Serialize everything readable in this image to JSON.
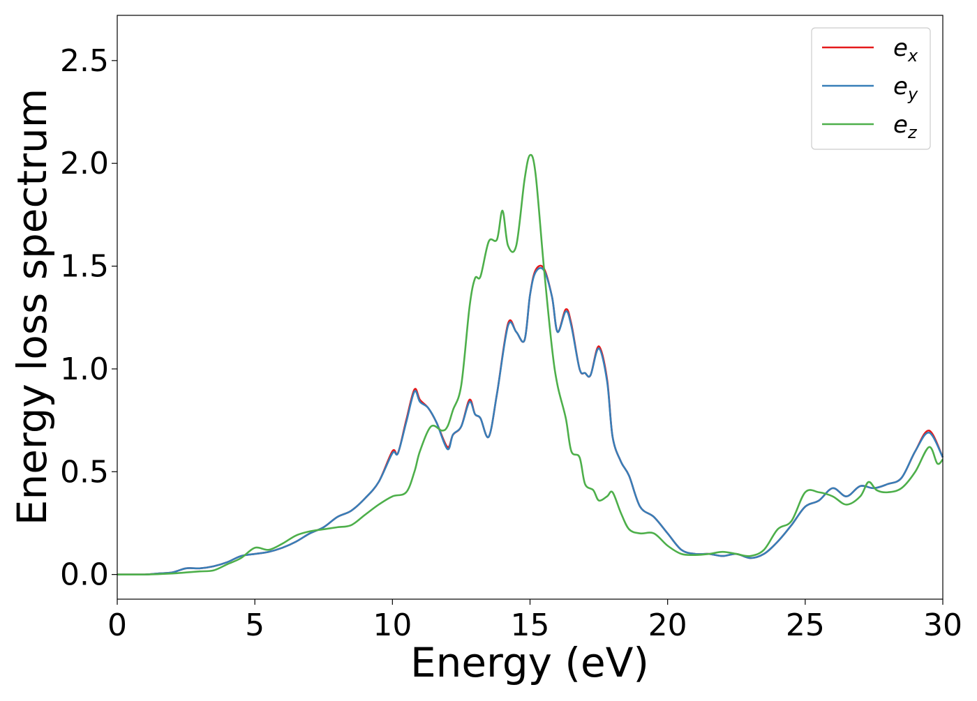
{
  "chart_data": {
    "type": "line",
    "xlabel": "Energy (eV)",
    "ylabel": "Energy loss spectrum",
    "xlim": [
      0,
      30
    ],
    "ylim": [
      -0.12,
      2.72
    ],
    "xticks": [
      0,
      5,
      10,
      15,
      20,
      25,
      30
    ],
    "xtick_labels": [
      "0",
      "5",
      "10",
      "15",
      "20",
      "25",
      "30"
    ],
    "yticks": [
      0.0,
      0.5,
      1.0,
      1.5,
      2.0,
      2.5
    ],
    "ytick_labels": [
      "0.0",
      "0.5",
      "1.0",
      "1.5",
      "2.0",
      "2.5"
    ],
    "grid": false,
    "legend_position": "top-right",
    "series": [
      {
        "name": "e",
        "subscript": "x",
        "color": "#e41a1c",
        "x": [
          0,
          1,
          1.5,
          2,
          2.5,
          3,
          3.5,
          4,
          4.5,
          5,
          5.5,
          6,
          6.5,
          7,
          7.5,
          8,
          8.5,
          9,
          9.5,
          10,
          10.2,
          10.5,
          10.8,
          11,
          11.3,
          11.6,
          12,
          12.2,
          12.5,
          12.8,
          13,
          13.2,
          13.5,
          13.8,
          14.2,
          14.5,
          14.8,
          15,
          15.2,
          15.5,
          15.8,
          16,
          16.3,
          16.5,
          16.8,
          17,
          17.2,
          17.5,
          17.8,
          18,
          18.3,
          18.6,
          19,
          19.5,
          20,
          20.5,
          21,
          21.5,
          22,
          22.5,
          23,
          23.5,
          24,
          24.5,
          25,
          25.5,
          26,
          26.5,
          27,
          27.5,
          28,
          28.5,
          29,
          29.5,
          30
        ],
        "values": [
          0,
          0,
          0.005,
          0.01,
          0.03,
          0.03,
          0.04,
          0.06,
          0.09,
          0.1,
          0.11,
          0.13,
          0.16,
          0.2,
          0.23,
          0.28,
          0.31,
          0.37,
          0.45,
          0.6,
          0.59,
          0.75,
          0.9,
          0.85,
          0.81,
          0.74,
          0.62,
          0.68,
          0.72,
          0.85,
          0.78,
          0.76,
          0.67,
          0.88,
          1.22,
          1.18,
          1.14,
          1.36,
          1.48,
          1.49,
          1.35,
          1.18,
          1.29,
          1.22,
          1.0,
          0.98,
          0.97,
          1.11,
          0.95,
          0.67,
          0.55,
          0.48,
          0.33,
          0.28,
          0.2,
          0.12,
          0.1,
          0.1,
          0.09,
          0.1,
          0.08,
          0.1,
          0.16,
          0.24,
          0.33,
          0.36,
          0.42,
          0.38,
          0.43,
          0.42,
          0.44,
          0.47,
          0.6,
          0.7,
          0.57
        ]
      },
      {
        "name": "e",
        "subscript": "y",
        "color": "#377eb8",
        "x": [
          0,
          1,
          1.5,
          2,
          2.5,
          3,
          3.5,
          4,
          4.5,
          5,
          5.5,
          6,
          6.5,
          7,
          7.5,
          8,
          8.5,
          9,
          9.5,
          10,
          10.2,
          10.5,
          10.8,
          11,
          11.3,
          11.6,
          12,
          12.2,
          12.5,
          12.8,
          13,
          13.2,
          13.5,
          13.8,
          14.2,
          14.5,
          14.8,
          15,
          15.2,
          15.5,
          15.8,
          16,
          16.3,
          16.5,
          16.8,
          17,
          17.2,
          17.5,
          17.8,
          18,
          18.3,
          18.6,
          19,
          19.5,
          20,
          20.5,
          21,
          21.5,
          22,
          22.5,
          23,
          23.5,
          24,
          24.5,
          25,
          25.5,
          26,
          26.5,
          27,
          27.5,
          28,
          28.5,
          29,
          29.5,
          30
        ],
        "values": [
          0,
          0,
          0.005,
          0.01,
          0.03,
          0.03,
          0.04,
          0.06,
          0.09,
          0.1,
          0.11,
          0.13,
          0.16,
          0.2,
          0.23,
          0.28,
          0.31,
          0.37,
          0.45,
          0.59,
          0.59,
          0.74,
          0.89,
          0.84,
          0.81,
          0.74,
          0.61,
          0.68,
          0.72,
          0.84,
          0.78,
          0.76,
          0.67,
          0.88,
          1.21,
          1.18,
          1.14,
          1.36,
          1.47,
          1.48,
          1.35,
          1.18,
          1.28,
          1.21,
          1.0,
          0.98,
          0.97,
          1.1,
          0.94,
          0.67,
          0.55,
          0.48,
          0.33,
          0.28,
          0.2,
          0.12,
          0.1,
          0.1,
          0.09,
          0.1,
          0.08,
          0.1,
          0.16,
          0.24,
          0.33,
          0.36,
          0.42,
          0.38,
          0.43,
          0.42,
          0.44,
          0.47,
          0.6,
          0.69,
          0.57
        ]
      },
      {
        "name": "e",
        "subscript": "z",
        "color": "#4daf4a",
        "x": [
          0,
          1,
          2,
          2.5,
          3,
          3.5,
          4,
          4.5,
          5,
          5.5,
          6,
          6.5,
          7,
          7.5,
          8,
          8.5,
          9,
          9.5,
          10,
          10.5,
          10.8,
          11,
          11.4,
          11.8,
          12,
          12.2,
          12.5,
          12.8,
          13,
          13.2,
          13.5,
          13.8,
          14,
          14.2,
          14.5,
          14.8,
          15,
          15.2,
          15.5,
          15.8,
          16,
          16.3,
          16.5,
          16.8,
          17,
          17.3,
          17.5,
          17.8,
          18,
          18.3,
          18.6,
          19,
          19.5,
          20,
          20.5,
          21,
          21.5,
          22,
          22.5,
          23,
          23.5,
          24,
          24.5,
          25,
          25.5,
          26,
          26.5,
          27,
          27.3,
          27.6,
          28,
          28.5,
          29,
          29.5,
          29.8,
          30
        ],
        "values": [
          0,
          0,
          0.005,
          0.01,
          0.015,
          0.02,
          0.05,
          0.08,
          0.13,
          0.12,
          0.15,
          0.19,
          0.21,
          0.22,
          0.23,
          0.24,
          0.29,
          0.34,
          0.38,
          0.4,
          0.5,
          0.6,
          0.72,
          0.7,
          0.72,
          0.8,
          0.92,
          1.3,
          1.44,
          1.45,
          1.62,
          1.63,
          1.77,
          1.6,
          1.6,
          1.92,
          2.04,
          1.95,
          1.5,
          1.1,
          0.92,
          0.76,
          0.6,
          0.57,
          0.44,
          0.41,
          0.36,
          0.38,
          0.4,
          0.3,
          0.22,
          0.2,
          0.2,
          0.14,
          0.1,
          0.095,
          0.1,
          0.11,
          0.1,
          0.09,
          0.12,
          0.22,
          0.26,
          0.4,
          0.4,
          0.38,
          0.34,
          0.38,
          0.45,
          0.41,
          0.4,
          0.42,
          0.5,
          0.62,
          0.54,
          0.56
        ]
      }
    ]
  }
}
